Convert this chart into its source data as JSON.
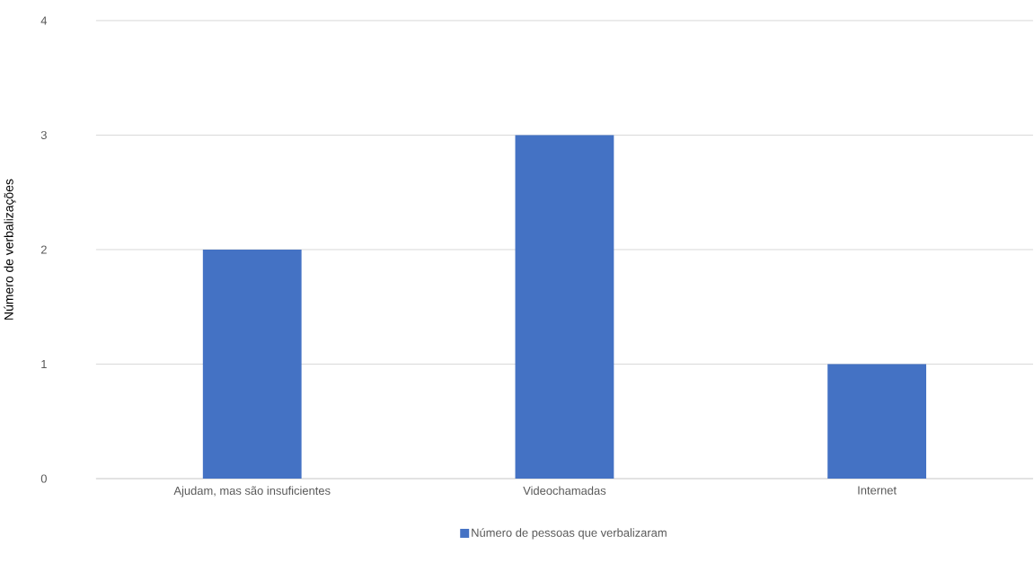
{
  "chart_data": {
    "type": "bar",
    "ylabel": "Número de verbalizações",
    "categories": [
      "Ajudam, mas são insuficientes",
      "Videochamadas",
      "Internet"
    ],
    "series": [
      {
        "name": "Número de pessoas que verbalizaram",
        "color": "#4472c4",
        "values": [
          2,
          3,
          1
        ]
      }
    ],
    "ylim": [
      0,
      4
    ],
    "yticks": [
      0,
      1,
      2,
      3,
      4
    ],
    "grid": "y",
    "legend": "bottom"
  }
}
